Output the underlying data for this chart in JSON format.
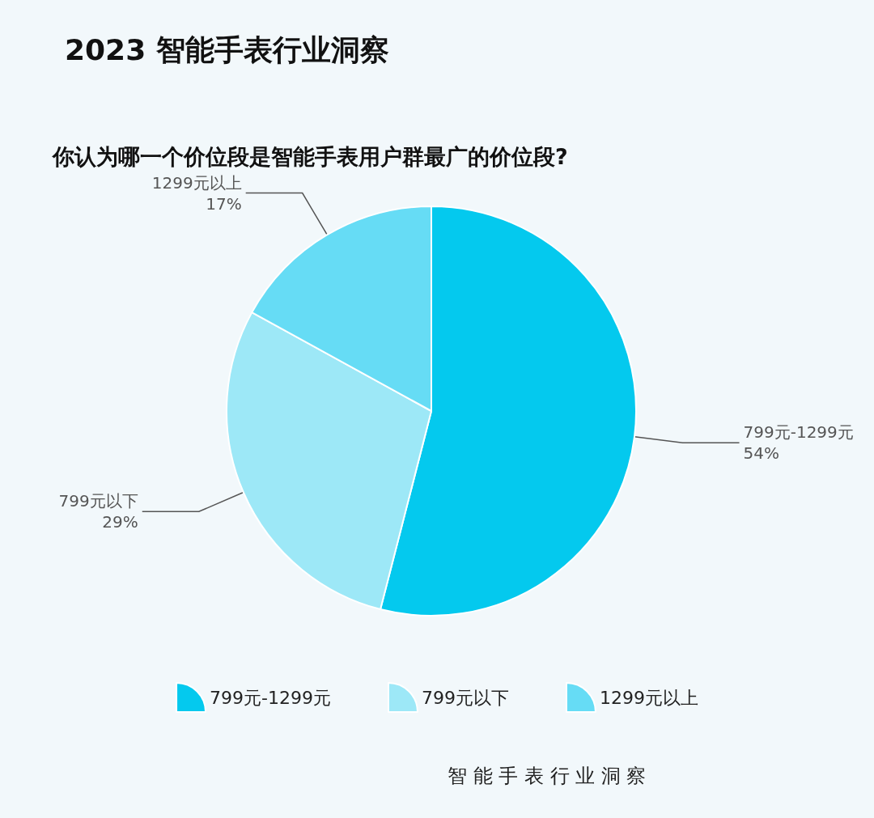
{
  "chart_data": {
    "type": "pie",
    "title": "2023 智能手表行业洞察",
    "subtitle": "你认为哪一个价位段是智能手表用户群最广的价位段?",
    "categories": [
      "799元-1299元",
      "799元以下",
      "1299元以上"
    ],
    "values": [
      54,
      29,
      17
    ],
    "value_labels": [
      "54%",
      "29%",
      "17%"
    ],
    "colors": [
      "#04c9ee",
      "#9de8f7",
      "#66dcf5"
    ],
    "legend": "bottom",
    "annotations": [
      "智 能 手 表 行 业 洞 察"
    ]
  }
}
